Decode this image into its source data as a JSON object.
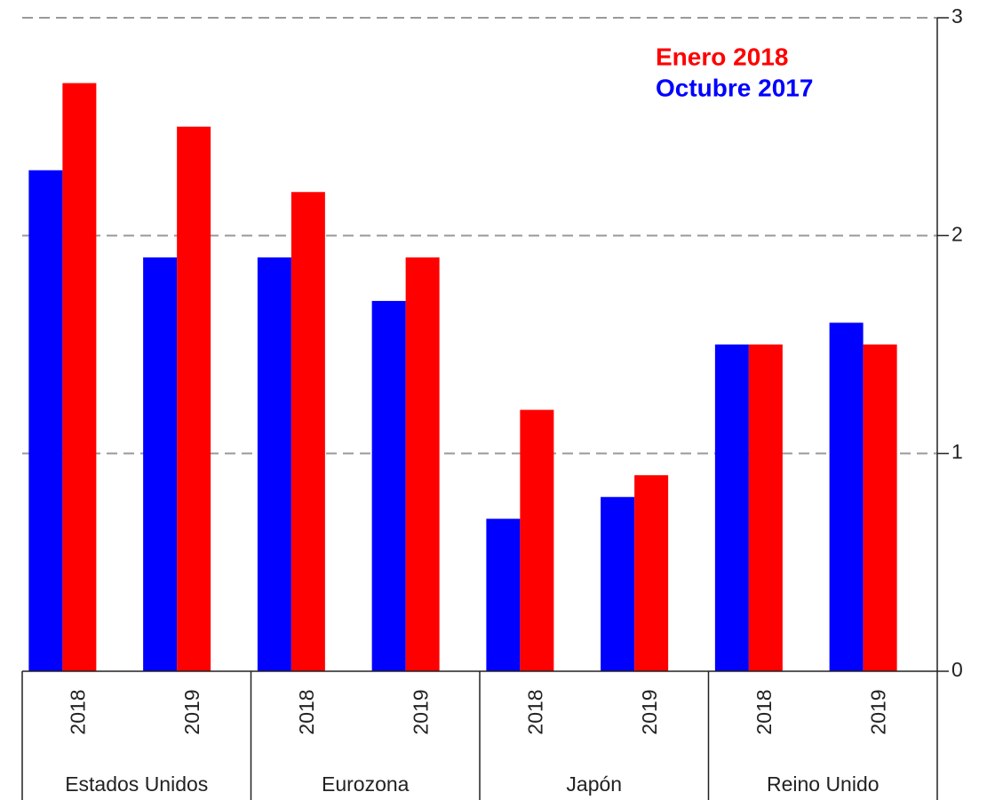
{
  "chart_data": {
    "type": "bar",
    "categories": [
      "2018",
      "2019",
      "2018",
      "2019",
      "2018",
      "2019",
      "2018",
      "2019"
    ],
    "groups": [
      "Estados Unidos",
      "Eurozona",
      "Japón",
      "Reino Unido"
    ],
    "series": [
      {
        "name": "Octubre 2017",
        "color": "#0000ff",
        "values": [
          2.3,
          1.9,
          1.9,
          1.7,
          0.7,
          0.8,
          1.5,
          1.6
        ]
      },
      {
        "name": "Enero 2018",
        "color": "#ff0000",
        "values": [
          2.7,
          2.5,
          2.2,
          1.9,
          1.2,
          0.9,
          1.5,
          1.5
        ]
      }
    ],
    "ylim": [
      0,
      3
    ],
    "yticks": [
      0,
      1,
      2,
      3
    ],
    "grid": true,
    "legend": "top-right"
  }
}
